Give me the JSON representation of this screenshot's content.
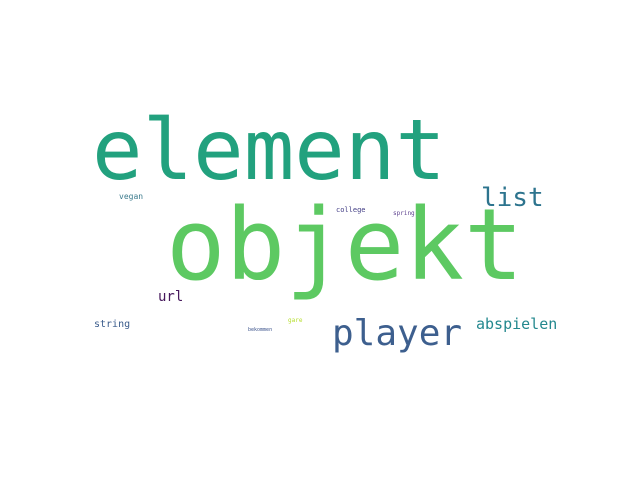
{
  "word_cloud": {
    "words": [
      {
        "text": "element",
        "color": "#22a17e"
      },
      {
        "text": "objekt",
        "color": "#5dc962"
      },
      {
        "text": "player",
        "color": "#3d5f8e"
      },
      {
        "text": "list",
        "color": "#2d748e"
      },
      {
        "text": "abspielen",
        "color": "#23888e"
      },
      {
        "text": "url",
        "color": "#46185c"
      },
      {
        "text": "string",
        "color": "#3b5c8c"
      },
      {
        "text": "vegan",
        "color": "#3c7b8d"
      },
      {
        "text": "college",
        "color": "#433e85"
      },
      {
        "text": "spring",
        "color": "#5c3f8d"
      },
      {
        "text": "gare",
        "color": "#b5de2b"
      },
      {
        "text": "bekommen",
        "color": "#3b528b"
      }
    ]
  }
}
